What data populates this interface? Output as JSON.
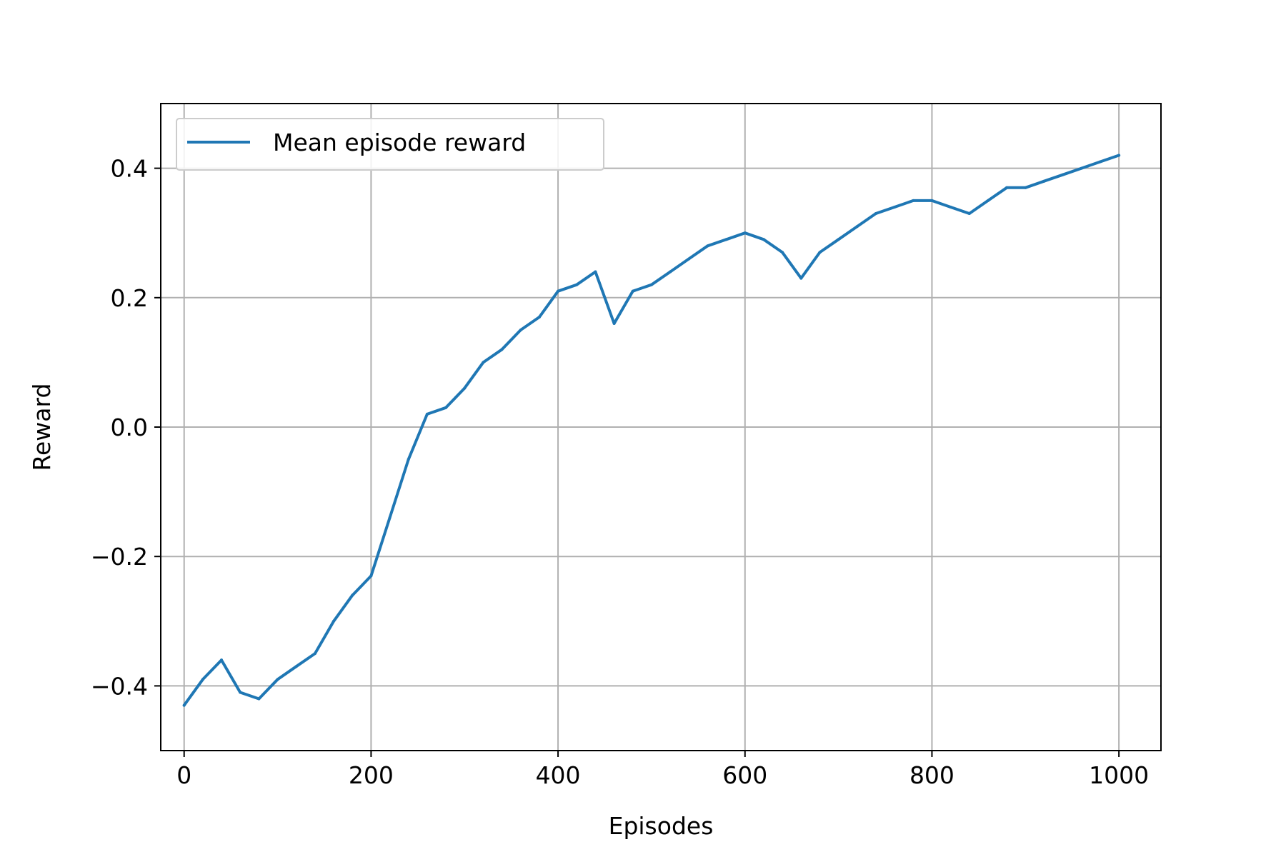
{
  "chart_data": {
    "type": "line",
    "xlabel": "Episodes",
    "ylabel": "Reward",
    "xlim": [
      -25,
      1045
    ],
    "ylim": [
      -0.5,
      0.5
    ],
    "xticks": [
      0,
      200,
      400,
      600,
      800,
      1000
    ],
    "xtick_labels": [
      "0",
      "200",
      "400",
      "600",
      "800",
      "1000"
    ],
    "yticks": [
      -0.4,
      -0.2,
      0.0,
      0.2,
      0.4
    ],
    "ytick_labels": [
      "−0.4",
      "−0.2",
      "0.0",
      "0.2",
      "0.4"
    ],
    "grid": true,
    "legend_position": "top-left",
    "series": [
      {
        "name": "Mean episode reward",
        "color": "#1f77b4",
        "x": [
          0,
          20,
          40,
          60,
          80,
          100,
          120,
          140,
          160,
          180,
          200,
          220,
          240,
          260,
          280,
          300,
          320,
          340,
          360,
          380,
          400,
          420,
          440,
          460,
          480,
          500,
          520,
          540,
          560,
          580,
          600,
          620,
          640,
          660,
          680,
          700,
          720,
          740,
          760,
          780,
          800,
          820,
          840,
          860,
          880,
          900,
          920,
          940,
          960,
          980,
          1000
        ],
        "y": [
          -0.43,
          -0.39,
          -0.36,
          -0.41,
          -0.42,
          -0.39,
          -0.37,
          -0.35,
          -0.3,
          -0.26,
          -0.23,
          -0.14,
          -0.05,
          0.02,
          0.03,
          0.06,
          0.1,
          0.12,
          0.15,
          0.17,
          0.21,
          0.22,
          0.24,
          0.16,
          0.21,
          0.22,
          0.24,
          0.26,
          0.28,
          0.29,
          0.3,
          0.29,
          0.27,
          0.23,
          0.27,
          0.29,
          0.31,
          0.33,
          0.34,
          0.35,
          0.35,
          0.34,
          0.33,
          0.35,
          0.37,
          0.37,
          0.38,
          0.39,
          0.4,
          0.41,
          0.42
        ]
      }
    ]
  }
}
